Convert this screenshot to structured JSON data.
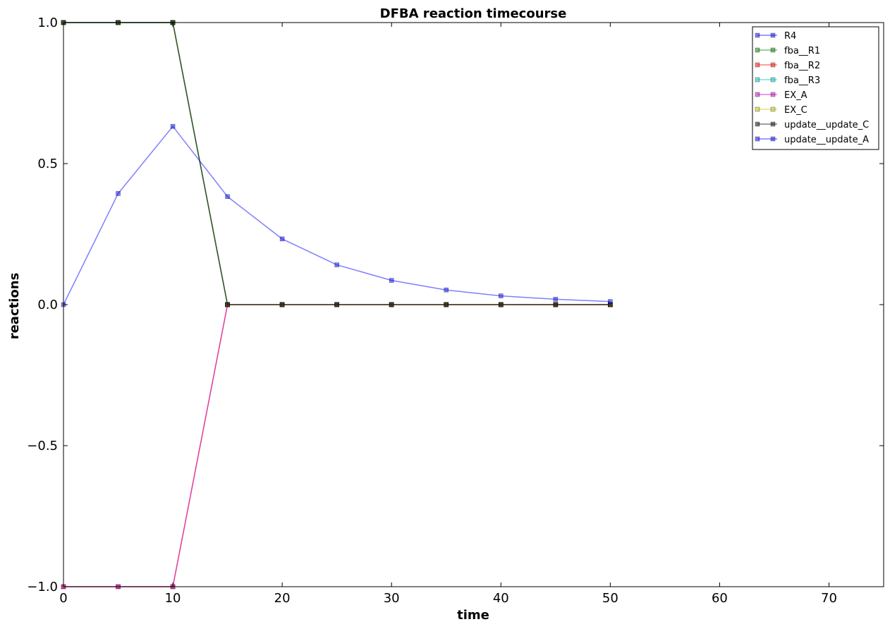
{
  "chart_data": {
    "type": "line",
    "title": "DFBA reaction timecourse",
    "xlabel": "time",
    "ylabel": "reactions",
    "xlim": [
      0,
      75
    ],
    "ylim": [
      -1.0,
      1.0
    ],
    "x_ticks": [
      0,
      10,
      20,
      30,
      40,
      50,
      60,
      70
    ],
    "y_ticks": [
      -1.0,
      -0.5,
      0.0,
      0.5,
      1.0
    ],
    "y_tick_labels": [
      "−1.0",
      "−0.5",
      "0.0",
      "0.5",
      "1.0"
    ],
    "x_tick_labels": [
      "0",
      "10",
      "20",
      "30",
      "40",
      "50",
      "60",
      "70"
    ],
    "grid": false,
    "legend_position": "top-right",
    "x": [
      0,
      5,
      10,
      15,
      20,
      25,
      30,
      35,
      40,
      45,
      50
    ],
    "series": [
      {
        "name": "R4",
        "color": "#0000ff",
        "values": [
          1.0,
          1.0,
          1.0,
          0.0,
          0.0,
          0.0,
          0.0,
          0.0,
          0.0,
          0.0,
          0.0
        ]
      },
      {
        "name": "fba__R1",
        "color": "#008000",
        "values": [
          1.0,
          1.0,
          1.0,
          0.0,
          0.0,
          0.0,
          0.0,
          0.0,
          0.0,
          0.0,
          0.0
        ]
      },
      {
        "name": "fba__R2",
        "color": "#ff0000",
        "values": [
          -1.0,
          -1.0,
          -1.0,
          0.0,
          0.0,
          0.0,
          0.0,
          0.0,
          0.0,
          0.0,
          0.0
        ]
      },
      {
        "name": "fba__R3",
        "color": "#00bfbf",
        "values": [
          1.0,
          1.0,
          1.0,
          0.0,
          0.0,
          0.0,
          0.0,
          0.0,
          0.0,
          0.0,
          0.0
        ]
      },
      {
        "name": "EX_A",
        "color": "#bf00bf",
        "values": [
          -1.0,
          -1.0,
          -1.0,
          0.0,
          0.0,
          0.0,
          0.0,
          0.0,
          0.0,
          0.0,
          0.0
        ]
      },
      {
        "name": "EX_C",
        "color": "#bfbf00",
        "values": [
          1.0,
          1.0,
          1.0,
          0.0,
          0.0,
          0.0,
          0.0,
          0.0,
          0.0,
          0.0,
          0.0
        ]
      },
      {
        "name": "update__update_C",
        "color": "#000000",
        "values": [
          1.0,
          1.0,
          1.0,
          0.0,
          0.0,
          0.0,
          0.0,
          0.0,
          0.0,
          0.0,
          0.0
        ]
      },
      {
        "name": "update__update_A",
        "color": "#0000ff",
        "values": [
          0.0,
          0.394,
          0.632,
          0.383,
          0.233,
          0.141,
          0.086,
          0.052,
          0.031,
          0.019,
          0.011
        ]
      }
    ]
  }
}
